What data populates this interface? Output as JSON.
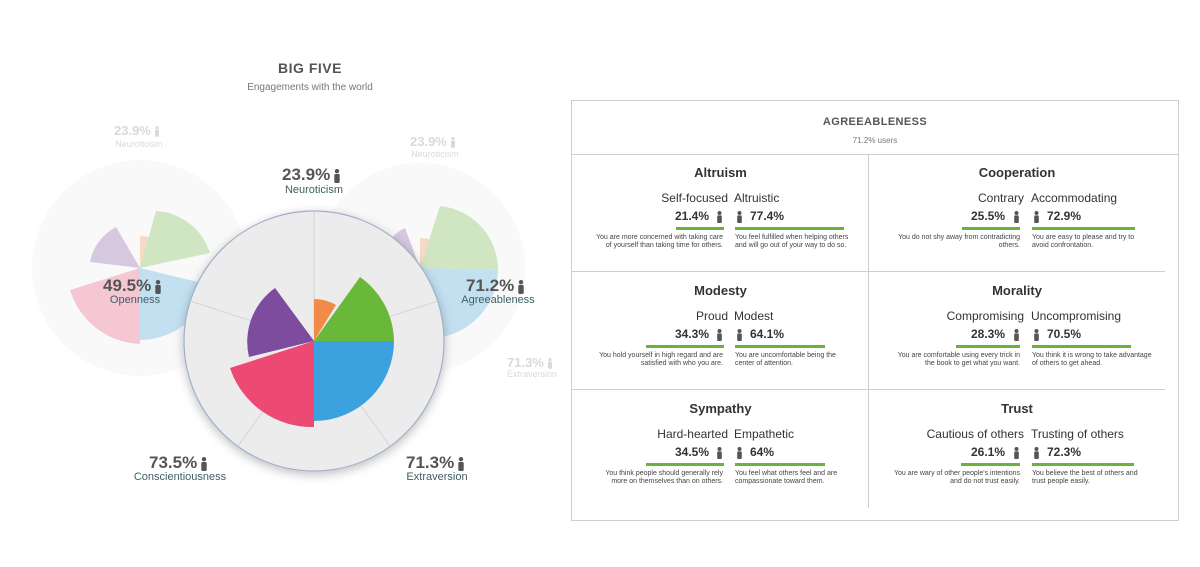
{
  "big_five": {
    "title": "BIG FIVE",
    "subtitle": "Engagements with the world",
    "center": {
      "neuroticism": {
        "pct": "23.9%",
        "label": "Neuroticism"
      },
      "openness": {
        "pct": "49.5%",
        "label": "Openness"
      },
      "agreeableness": {
        "pct": "71.2%",
        "label": "Agreeableness"
      },
      "conscientiousness": {
        "pct": "73.5%",
        "label": "Conscientiousness"
      },
      "extraversion": {
        "pct": "71.3%",
        "label": "Extraversion"
      }
    },
    "ghost_left": {
      "pct": "23.9%",
      "label": "Neuroticism"
    },
    "ghost_right_top": {
      "pct": "23.9%",
      "label": "Neuroticism"
    },
    "ghost_right_bottom": {
      "pct": "71.3%",
      "label": "Extraversion"
    },
    "colors": {
      "neuroticism": "#f08c47",
      "agreeableness": "#6ab83a",
      "extraversion": "#3ba1df",
      "conscientiousness": "#ec4a73",
      "openness": "#7e4c9e"
    }
  },
  "agreeableness": {
    "title": "AGREEABLENESS",
    "subtitle": "71.2% users",
    "facets": [
      {
        "title": "Altruism",
        "low_label": "Self-focused",
        "low_pct": "21.4%",
        "low_value": 21.4,
        "high_label": "Altruistic",
        "high_pct": "77.4%",
        "high_value": 77.4,
        "low_desc": "You are more concerned with taking care of yourself than taking time for others.",
        "high_desc": "You feel fulfilled when helping others and will go out of your way to do so."
      },
      {
        "title": "Cooperation",
        "low_label": "Contrary",
        "low_pct": "25.5%",
        "low_value": 25.5,
        "high_label": "Accommodating",
        "high_pct": "72.9%",
        "high_value": 72.9,
        "low_desc": "You do not shy away from contradicting others.",
        "high_desc": "You are easy to please and try to avoid confrontation."
      },
      {
        "title": "Modesty",
        "low_label": "Proud",
        "low_pct": "34.3%",
        "low_value": 34.3,
        "high_label": "Modest",
        "high_pct": "64.1%",
        "high_value": 64.1,
        "low_desc": "You hold yourself in high regard and are satisfied with who you are.",
        "high_desc": "You are uncomfortable being the center of attention."
      },
      {
        "title": "Morality",
        "low_label": "Compromising",
        "low_pct": "28.3%",
        "low_value": 28.3,
        "high_label": "Uncompromising",
        "high_pct": "70.5%",
        "high_value": 70.5,
        "low_desc": "You are comfortable using every trick in the book to get what you want.",
        "high_desc": "You think it is wrong to take advantage of others to get ahead."
      },
      {
        "title": "Sympathy",
        "low_label": "Hard-hearted",
        "low_pct": "34.5%",
        "low_value": 34.5,
        "high_label": "Empathetic",
        "high_pct": "64%",
        "high_value": 64,
        "low_desc": "You think people should generally rely more on themselves than on others.",
        "high_desc": "You feel what others feel and are compassionate toward them."
      },
      {
        "title": "Trust",
        "low_label": "Cautious of others",
        "low_pct": "26.1%",
        "low_value": 26.1,
        "high_label": "Trusting of others",
        "high_pct": "72.3%",
        "high_value": 72.3,
        "low_desc": "You are wary of other people's intentions and do not trust easily.",
        "high_desc": "You believe the best of others and trust people easily."
      }
    ]
  }
}
